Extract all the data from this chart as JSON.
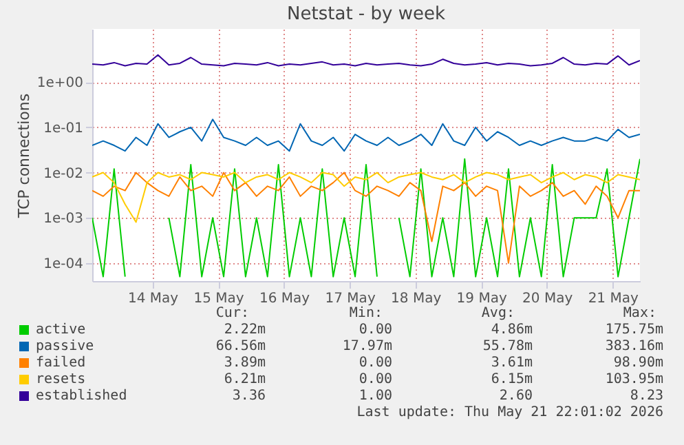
{
  "chart_data": {
    "type": "line",
    "title": "Netstat - by week",
    "ylabel": "TCP connections",
    "log": "y",
    "grid": true,
    "legend": "bottom left",
    "line_style": "solid",
    "xlim": [
      "2026-05-13T14:00",
      "2026-05-21T22:00"
    ],
    "xticks": [
      {
        "value": "2026-05-14T12:00",
        "label": "14 May"
      },
      {
        "value": "2026-05-15T12:00",
        "label": "15 May"
      },
      {
        "value": "2026-05-16T12:00",
        "label": "16 May"
      },
      {
        "value": "2026-05-17T12:00",
        "label": "17 May"
      },
      {
        "value": "2026-05-18T12:00",
        "label": "18 May"
      },
      {
        "value": "2026-05-19T12:00",
        "label": "19 May"
      },
      {
        "value": "2026-05-20T12:00",
        "label": "20 May"
      },
      {
        "value": "2026-05-21T12:00",
        "label": "21 May"
      }
    ],
    "ylim": [
      4e-05,
      15
    ],
    "yticks": [
      {
        "value": 0.0001,
        "label": "1e-04"
      },
      {
        "value": 0.001,
        "label": "1e-03"
      },
      {
        "value": 0.01,
        "label": "1e-02"
      },
      {
        "value": 0.1,
        "label": "1e-01"
      },
      {
        "value": 1,
        "label": "1e+00"
      }
    ],
    "x": [
      "2026-05-13T14:00",
      "2026-05-13T18:00",
      "2026-05-13T22:00",
      "2026-05-14T02:00",
      "2026-05-14T06:00",
      "2026-05-14T10:00",
      "2026-05-14T14:00",
      "2026-05-14T18:00",
      "2026-05-14T22:00",
      "2026-05-15T02:00",
      "2026-05-15T06:00",
      "2026-05-15T10:00",
      "2026-05-15T14:00",
      "2026-05-15T18:00",
      "2026-05-15T22:00",
      "2026-05-16T02:00",
      "2026-05-16T06:00",
      "2026-05-16T10:00",
      "2026-05-16T14:00",
      "2026-05-16T18:00",
      "2026-05-16T22:00",
      "2026-05-17T02:00",
      "2026-05-17T06:00",
      "2026-05-17T10:00",
      "2026-05-17T14:00",
      "2026-05-17T18:00",
      "2026-05-17T22:00",
      "2026-05-18T02:00",
      "2026-05-18T06:00",
      "2026-05-18T10:00",
      "2026-05-18T14:00",
      "2026-05-18T18:00",
      "2026-05-18T22:00",
      "2026-05-19T02:00",
      "2026-05-19T06:00",
      "2026-05-19T10:00",
      "2026-05-19T14:00",
      "2026-05-19T18:00",
      "2026-05-19T22:00",
      "2026-05-20T02:00",
      "2026-05-20T06:00",
      "2026-05-20T10:00",
      "2026-05-20T14:00",
      "2026-05-20T18:00",
      "2026-05-20T22:00",
      "2026-05-21T02:00",
      "2026-05-21T06:00",
      "2026-05-21T10:00",
      "2026-05-21T14:00",
      "2026-05-21T18:00",
      "2026-05-21T22:00"
    ],
    "series": [
      {
        "name": "active",
        "color": "#00cc00",
        "values": [
          0.001,
          5e-05,
          0.012,
          5e-05,
          null,
          null,
          null,
          0.001,
          5e-05,
          0.015,
          5e-05,
          0.001,
          5e-05,
          0.012,
          5e-05,
          0.001,
          5e-05,
          0.015,
          5e-05,
          0.001,
          5e-05,
          0.012,
          5e-05,
          0.001,
          5e-05,
          0.015,
          5e-05,
          null,
          0.001,
          5e-05,
          0.012,
          5e-05,
          0.001,
          5e-05,
          0.02,
          5e-05,
          0.001,
          5e-05,
          0.012,
          5e-05,
          0.001,
          5e-05,
          0.015,
          5e-05,
          0.001,
          0.001,
          0.001,
          0.012,
          5e-05,
          0.001,
          0.02
        ]
      },
      {
        "name": "passive",
        "color": "#0066b3",
        "values": [
          0.04,
          0.05,
          0.04,
          0.03,
          0.06,
          0.04,
          0.12,
          0.06,
          0.08,
          0.1,
          0.05,
          0.15,
          0.06,
          0.05,
          0.04,
          0.06,
          0.04,
          0.05,
          0.03,
          0.12,
          0.05,
          0.04,
          0.06,
          0.03,
          0.07,
          0.05,
          0.04,
          0.06,
          0.04,
          0.05,
          0.07,
          0.04,
          0.12,
          0.05,
          0.04,
          0.1,
          0.05,
          0.08,
          0.06,
          0.04,
          0.05,
          0.04,
          0.05,
          0.06,
          0.05,
          0.05,
          0.06,
          0.05,
          0.09,
          0.06,
          0.07
        ]
      },
      {
        "name": "failed",
        "color": "#ff8000",
        "values": [
          0.004,
          0.003,
          0.005,
          0.004,
          0.01,
          0.006,
          0.004,
          0.003,
          0.008,
          0.004,
          0.005,
          0.003,
          0.01,
          0.004,
          0.006,
          0.003,
          0.005,
          0.004,
          0.008,
          0.003,
          0.005,
          0.004,
          0.006,
          0.01,
          0.004,
          0.003,
          0.005,
          0.004,
          0.003,
          0.006,
          0.004,
          0.0003,
          0.005,
          0.004,
          0.006,
          0.003,
          0.005,
          0.004,
          0.0001,
          0.005,
          0.003,
          0.004,
          0.006,
          0.003,
          0.004,
          0.002,
          0.005,
          0.003,
          0.001,
          0.004,
          0.004
        ]
      },
      {
        "name": "resets",
        "color": "#ffcc00",
        "values": [
          0.008,
          0.01,
          0.006,
          0.002,
          0.0008,
          0.006,
          0.01,
          0.008,
          0.009,
          0.007,
          0.01,
          0.009,
          0.008,
          0.01,
          0.006,
          0.008,
          0.009,
          0.007,
          0.01,
          0.008,
          0.006,
          0.01,
          0.009,
          0.005,
          0.008,
          0.007,
          0.01,
          0.006,
          0.008,
          0.009,
          0.01,
          0.008,
          0.007,
          0.009,
          0.006,
          0.008,
          0.01,
          0.009,
          0.007,
          0.008,
          0.009,
          0.006,
          0.008,
          0.01,
          0.007,
          0.009,
          0.008,
          0.006,
          0.009,
          0.008,
          0.007
        ]
      },
      {
        "name": "established",
        "color": "#330099",
        "values": [
          2.5,
          2.4,
          2.7,
          2.3,
          2.6,
          2.5,
          4.0,
          2.4,
          2.6,
          3.5,
          2.5,
          2.4,
          2.3,
          2.6,
          2.5,
          2.4,
          2.7,
          2.3,
          2.5,
          2.4,
          2.6,
          2.8,
          2.4,
          2.5,
          2.3,
          2.6,
          2.4,
          2.5,
          2.6,
          2.4,
          2.3,
          2.5,
          3.2,
          2.6,
          2.4,
          2.5,
          2.7,
          2.4,
          2.6,
          2.5,
          2.3,
          2.4,
          2.6,
          3.5,
          2.5,
          2.4,
          2.6,
          2.5,
          3.8,
          2.4,
          3.0
        ]
      }
    ],
    "annotations": [
      "Cur:",
      "Min:",
      "Avg:",
      "Max:",
      "2.22m",
      "0.00",
      "4.86m",
      "175.75m",
      "66.56m",
      "17.97m",
      "55.78m",
      "383.16m",
      "3.89m",
      "0.00",
      "3.61m",
      "98.90m",
      "6.21m",
      "0.00",
      "6.15m",
      "103.95m",
      "3.36",
      "1.00",
      "2.60",
      "8.23",
      "Last update: Thu May 21 22:01:02 2026"
    ]
  }
}
